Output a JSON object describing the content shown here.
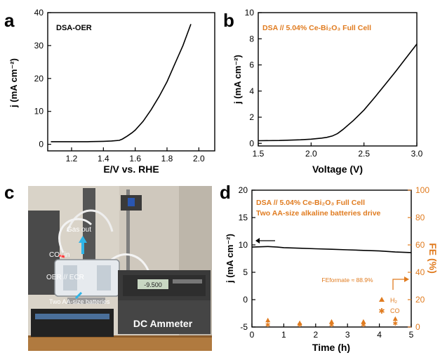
{
  "panel_labels": {
    "a": "a",
    "b": "b",
    "c": "c",
    "d": "d"
  },
  "colors": {
    "line": "#000000",
    "orange": "#e07b1f",
    "photo_wall": "#c9c2b6",
    "bench": "#b07a3f"
  },
  "chart_data": [
    {
      "id": "a",
      "type": "line",
      "annotation": "DSA-OER",
      "xlabel": "E/V vs. RHE",
      "ylabel": "j (mA cm⁻²)",
      "xlim": [
        1.05,
        2.1
      ],
      "ylim": [
        -2,
        40
      ],
      "xticks": [
        1.2,
        1.4,
        1.6,
        1.8,
        2.0
      ],
      "yticks": [
        0,
        10,
        20,
        30,
        40
      ],
      "series": [
        {
          "x": [
            1.07,
            1.2,
            1.3,
            1.4,
            1.45,
            1.5,
            1.52,
            1.55,
            1.58,
            1.6,
            1.65,
            1.7,
            1.75,
            1.8,
            1.85,
            1.9,
            1.95
          ],
          "y": [
            0.8,
            0.8,
            0.8,
            0.9,
            1.0,
            1.2,
            1.6,
            2.5,
            3.5,
            4.3,
            7.0,
            10.5,
            14.5,
            19.0,
            24.5,
            30.0,
            36.5
          ]
        }
      ]
    },
    {
      "id": "b",
      "type": "line",
      "annotation": "DSA // 5.04% Ce-Bi₂O₃ Full Cell",
      "xlabel": "Voltage (V)",
      "ylabel": "j (mA cm⁻²)",
      "xlim": [
        1.5,
        3.0
      ],
      "ylim": [
        -0.2,
        10
      ],
      "xticks": [
        1.5,
        2.0,
        2.5,
        3.0
      ],
      "yticks": [
        0,
        2,
        4,
        6,
        8,
        10
      ],
      "series": [
        {
          "x": [
            1.5,
            1.7,
            1.9,
            2.0,
            2.1,
            2.15,
            2.2,
            2.25,
            2.3,
            2.4,
            2.5,
            2.6,
            2.7,
            2.8,
            2.9,
            3.0
          ],
          "y": [
            0.2,
            0.22,
            0.27,
            0.32,
            0.4,
            0.46,
            0.56,
            0.75,
            1.05,
            1.75,
            2.55,
            3.5,
            4.5,
            5.5,
            6.55,
            7.6
          ]
        }
      ]
    },
    {
      "id": "d",
      "type": "line",
      "annotations": [
        "DSA // 5.04% Ce-Bi₂O₃ Full Cell",
        "Two AA-size alkaline batteries drive"
      ],
      "fe_note": "FEformate ≈ 88.9%",
      "xlabel": "Time (h)",
      "ylabel": "j (mA cm⁻²)",
      "ylabel_right": "FE (%)",
      "xlim": [
        0,
        5
      ],
      "ylim": [
        -5,
        20
      ],
      "ylim_right": [
        0,
        100
      ],
      "xticks": [
        0,
        1,
        2,
        3,
        4,
        5
      ],
      "yticks": [
        -5,
        0,
        5,
        10,
        15,
        20
      ],
      "yticks_right": [
        0,
        20,
        40,
        60,
        80,
        100
      ],
      "series": [
        {
          "name": "",
          "axis": "left",
          "x": [
            0,
            0.5,
            0.8,
            1.0,
            1.5,
            2.0,
            2.5,
            3.0,
            3.5,
            4.0,
            4.5,
            5.0
          ],
          "y": [
            9.6,
            9.7,
            9.6,
            9.5,
            9.4,
            9.3,
            9.2,
            9.1,
            9.0,
            8.9,
            8.7,
            8.6
          ]
        },
        {
          "name": "H₂",
          "axis": "right",
          "marker": "triangle",
          "x": [
            0.5,
            1.5,
            2.5,
            3.5,
            4.5
          ],
          "y": [
            5,
            3,
            4,
            4,
            6
          ]
        },
        {
          "name": "CO",
          "axis": "right",
          "marker": "star",
          "x": [
            0.5,
            1.5,
            2.5,
            3.5,
            4.5
          ],
          "y": [
            2,
            2,
            2,
            2,
            3
          ]
        }
      ]
    }
  ],
  "photo": {
    "labels": {
      "gas_out": "Gas out",
      "co2_in": "CO₂ in",
      "oer_ecr": "OER // ECR",
      "batteries": "Two AA-size batteries",
      "ammeter": "DC Ammeter",
      "display": "-9.500"
    }
  }
}
